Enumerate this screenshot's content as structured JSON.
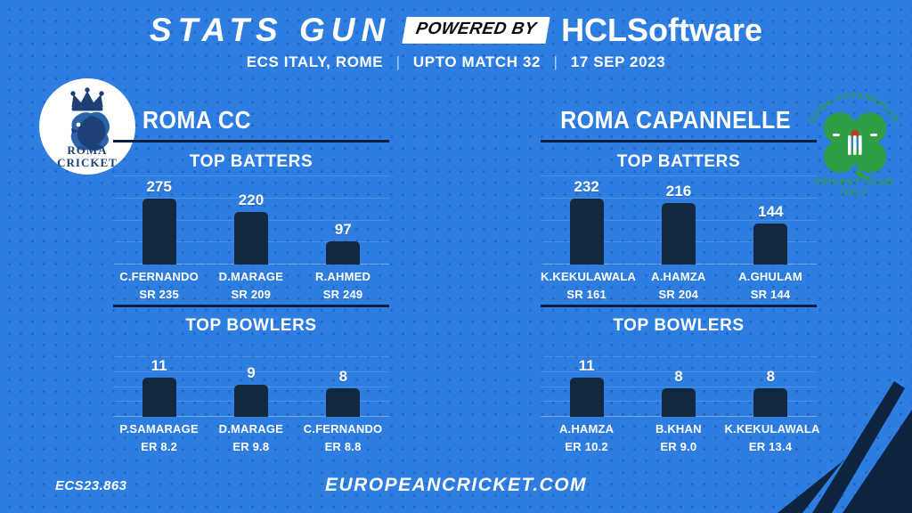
{
  "header": {
    "title": "STATS GUN",
    "powered_by": "POWERED BY",
    "brand": "HCLSoftware",
    "subtitle_parts": [
      "ECS ITALY, ROME",
      "UPTO MATCH 32",
      "17 SEP 2023"
    ],
    "separator": "|"
  },
  "colors": {
    "background": "#2e7ee2",
    "bar_navy": "#13273e",
    "divider_navy": "#0a1f3d",
    "powered_box": "#ffffff",
    "clover_green": "#2f9e44",
    "ball_red": "#c0392b",
    "text": "#ffffff"
  },
  "teams": [
    {
      "name": "ROMA CC",
      "logo": {
        "line1": "ROMA",
        "line2": "CRICKET"
      },
      "batters_heading": "TOP BATTERS",
      "bowlers_heading": "TOP BOWLERS",
      "batters": [
        {
          "name": "C.FERNANDO",
          "value": 275,
          "stat": "SR 235"
        },
        {
          "name": "D.MARAGE",
          "value": 220,
          "stat": "SR 209"
        },
        {
          "name": "R.AHMED",
          "value": 97,
          "stat": "SR 249"
        }
      ],
      "bowlers": [
        {
          "name": "P.SAMARAGE",
          "value": 11,
          "stat": "ER 8.2"
        },
        {
          "name": "D.MARAGE",
          "value": 9,
          "stat": "ER 9.8"
        },
        {
          "name": "C.FERNANDO",
          "value": 8,
          "stat": "ER 8.8"
        }
      ]
    },
    {
      "name": "ROMA CAPANNELLE",
      "logo": {
        "arc": "ROMA CAPANNELLE",
        "line1": "CRICKET CLUB",
        "line2": "ITALY"
      },
      "batters_heading": "TOP BATTERS",
      "bowlers_heading": "TOP BOWLERS",
      "batters": [
        {
          "name": "K.KEKULAWALA",
          "value": 232,
          "stat": "SR 161"
        },
        {
          "name": "A.HAMZA",
          "value": 216,
          "stat": "SR 204"
        },
        {
          "name": "A.GHULAM",
          "value": 144,
          "stat": "SR 144"
        }
      ],
      "bowlers": [
        {
          "name": "A.HAMZA",
          "value": 11,
          "stat": "ER 10.2"
        },
        {
          "name": "B.KHAN",
          "value": 8,
          "stat": "ER 9.0"
        },
        {
          "name": "K.KEKULAWALA",
          "value": 8,
          "stat": "ER 13.4"
        }
      ]
    }
  ],
  "footer": {
    "code": "ECS23.863",
    "site": "EUROPEANCRICKET.COM"
  },
  "chart_data": [
    {
      "type": "bar",
      "team": "ROMA CC",
      "title": "TOP BATTERS",
      "categories": [
        "C.FERNANDO",
        "D.MARAGE",
        "R.AHMED"
      ],
      "values": [
        275,
        220,
        97
      ],
      "data_labels": [
        "275",
        "220",
        "97"
      ],
      "secondary_labels": [
        "SR 235",
        "SR 209",
        "SR 249"
      ],
      "ylim": [
        0,
        275
      ],
      "grid": true,
      "legend": false
    },
    {
      "type": "bar",
      "team": "ROMA CC",
      "title": "TOP BOWLERS",
      "categories": [
        "P.SAMARAGE",
        "D.MARAGE",
        "C.FERNANDO"
      ],
      "values": [
        11,
        9,
        8
      ],
      "data_labels": [
        "11",
        "9",
        "8"
      ],
      "secondary_labels": [
        "ER 8.2",
        "ER 9.8",
        "ER 8.8"
      ],
      "ylim": [
        0,
        11
      ],
      "grid": true,
      "legend": false
    },
    {
      "type": "bar",
      "team": "ROMA CAPANNELLE",
      "title": "TOP BATTERS",
      "categories": [
        "K.KEKULAWALA",
        "A.HAMZA",
        "A.GHULAM"
      ],
      "values": [
        232,
        216,
        144
      ],
      "data_labels": [
        "232",
        "216",
        "144"
      ],
      "secondary_labels": [
        "SR 161",
        "SR 204",
        "SR 144"
      ],
      "ylim": [
        0,
        232
      ],
      "grid": true,
      "legend": false
    },
    {
      "type": "bar",
      "team": "ROMA CAPANNELLE",
      "title": "TOP BOWLERS",
      "categories": [
        "A.HAMZA",
        "B.KHAN",
        "K.KEKULAWALA"
      ],
      "values": [
        11,
        8,
        8
      ],
      "data_labels": [
        "11",
        "8",
        "8"
      ],
      "secondary_labels": [
        "ER 10.2",
        "ER 9.0",
        "ER 13.4"
      ],
      "ylim": [
        0,
        11
      ],
      "grid": true,
      "legend": false
    }
  ]
}
